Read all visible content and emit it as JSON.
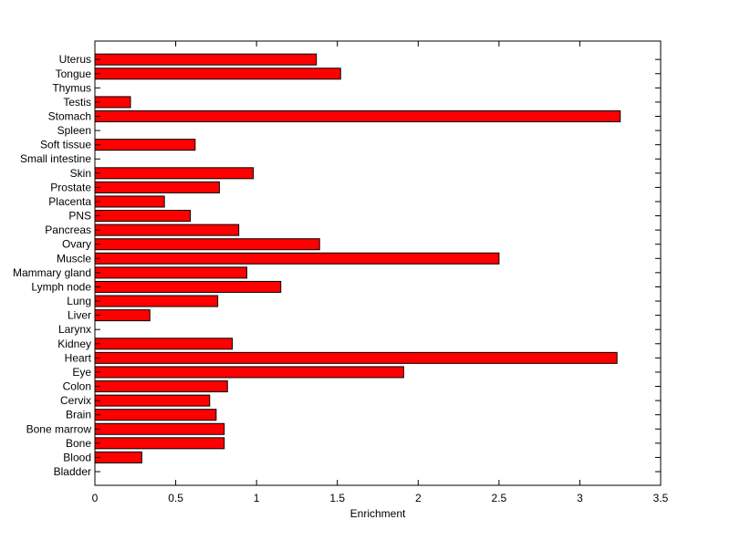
{
  "chart_data": {
    "type": "bar",
    "orientation": "horizontal",
    "title": "",
    "xlabel": "Enrichment",
    "ylabel": "",
    "xlim": [
      0,
      3.5
    ],
    "xticks": [
      0,
      0.5,
      1,
      1.5,
      2,
      2.5,
      3,
      3.5
    ],
    "xtick_labels": [
      "0",
      "0.5",
      "1",
      "1.5",
      "2",
      "2.5",
      "3",
      "3.5"
    ],
    "grid": false,
    "legend": "none",
    "bar_color": "#ff0000",
    "bar_edge_color": "#000000",
    "categories": [
      "Bladder",
      "Blood",
      "Bone",
      "Bone marrow",
      "Brain",
      "Cervix",
      "Colon",
      "Eye",
      "Heart",
      "Kidney",
      "Larynx",
      "Liver",
      "Lung",
      "Lymph node",
      "Mammary gland",
      "Muscle",
      "Ovary",
      "Pancreas",
      "PNS",
      "Placenta",
      "Prostate",
      "Skin",
      "Small intestine",
      "Soft tissue",
      "Spleen",
      "Stomach",
      "Testis",
      "Thymus",
      "Tongue",
      "Uterus"
    ],
    "values": [
      0,
      0.29,
      0.8,
      0.8,
      0.75,
      0.71,
      0.82,
      1.91,
      3.23,
      0.85,
      0,
      0.34,
      0.76,
      1.15,
      0.94,
      2.5,
      1.39,
      0.89,
      0.59,
      0.43,
      0.77,
      0.98,
      0,
      0.62,
      0,
      3.25,
      0.22,
      0,
      1.52,
      1.37
    ]
  }
}
